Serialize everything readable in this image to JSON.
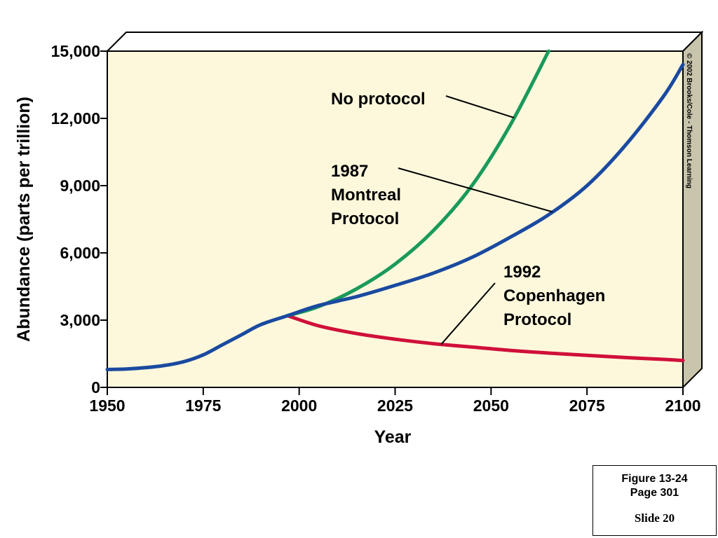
{
  "chart_data": {
    "type": "line",
    "title": "",
    "xlabel": "Year",
    "ylabel": "Abundance (parts per trillion)",
    "xlim": [
      1950,
      2100
    ],
    "ylim": [
      0,
      15000
    ],
    "x_ticks": [
      "1950",
      "1975",
      "2000",
      "2025",
      "2050",
      "2075",
      "2100"
    ],
    "y_ticks": [
      "0",
      "3,000",
      "6,000",
      "9,000",
      "12,000",
      "15,000"
    ],
    "grid": false,
    "series": [
      {
        "name": "No protocol",
        "color": "#1a9a5a",
        "x": [
          1997,
          2005,
          2015,
          2025,
          2035,
          2045,
          2055,
          2065
        ],
        "y": [
          3200,
          3600,
          4400,
          5500,
          7000,
          9000,
          11700,
          15000
        ]
      },
      {
        "name": "1987 Montreal Protocol",
        "color": "#1a4aa0",
        "x": [
          1950,
          1955,
          1960,
          1965,
          1970,
          1975,
          1980,
          1985,
          1990,
          1997,
          2005,
          2015,
          2025,
          2035,
          2045,
          2055,
          2065,
          2075,
          2085,
          2095,
          2100
        ],
        "y": [
          800,
          820,
          880,
          980,
          1150,
          1450,
          1900,
          2350,
          2800,
          3200,
          3650,
          4050,
          4550,
          5100,
          5800,
          6700,
          7700,
          9000,
          10800,
          13000,
          14400
        ]
      },
      {
        "name": "1992 Copenhagen Protocol",
        "color": "#d0103a",
        "x": [
          1997,
          2005,
          2015,
          2025,
          2035,
          2045,
          2055,
          2065,
          2075,
          2085,
          2095,
          2100
        ],
        "y": [
          3200,
          2750,
          2400,
          2150,
          1950,
          1800,
          1650,
          1530,
          1430,
          1330,
          1250,
          1200
        ]
      }
    ],
    "annotations": [
      {
        "lines": [
          "No protocol"
        ],
        "target_series": 0,
        "target_x": 2056
      },
      {
        "lines": [
          "1987",
          "Montreal",
          "Protocol"
        ],
        "target_series": 1,
        "target_x": 2066
      },
      {
        "lines": [
          "1992",
          "Copenhagen",
          "Protocol"
        ],
        "target_series": 2,
        "target_x": 2037
      }
    ],
    "credit": "© 2002 Brooks/Cole - Thomson Learning",
    "colors": {
      "plot_background": "#fdf8dc",
      "frame_side": "#c8c5ac",
      "frame_top": "#ffffff"
    }
  },
  "caption": {
    "figure": "Figure 13-24",
    "page": "Page 301",
    "slide": "Slide 20"
  }
}
